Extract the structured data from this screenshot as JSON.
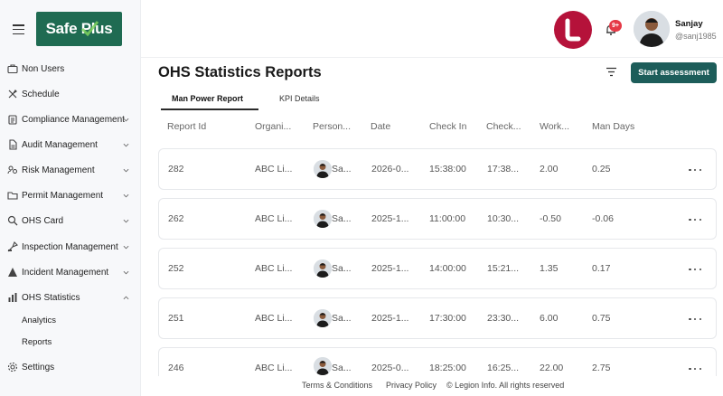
{
  "header": {
    "user_name": "Sanjay",
    "user_handle": "@sanj1985",
    "notification_badge": "9+",
    "brand_color": "#b5123a"
  },
  "logo": {
    "text": "Safe Plus",
    "color": "#1f6b52"
  },
  "sidebar": {
    "items": [
      {
        "label": "Non Users",
        "icon": "briefcase-icon"
      },
      {
        "label": "Schedule",
        "icon": "tools-icon"
      },
      {
        "label": "Compliance Management",
        "icon": "clipboard-icon"
      },
      {
        "label": "Audit Management",
        "icon": "document-icon"
      },
      {
        "label": "Risk Management",
        "icon": "people-icon"
      },
      {
        "label": "Permit Management",
        "icon": "folder-icon"
      },
      {
        "label": "OHS Card",
        "icon": "search-icon"
      },
      {
        "label": "Inspection Management",
        "icon": "inspection-icon"
      },
      {
        "label": "Incident Management",
        "icon": "warning-icon"
      },
      {
        "label": "OHS Statistics",
        "icon": "bar-chart-icon"
      }
    ],
    "sub_items": [
      {
        "label": "Analytics"
      },
      {
        "label": "Reports"
      }
    ],
    "settings_label": "Settings"
  },
  "main": {
    "title": "OHS Statistics Reports",
    "start_button": "Start assessment",
    "accent_color": "#1d5d5a",
    "tabs": [
      {
        "label": "Man Power Report",
        "active": true
      },
      {
        "label": "KPI Details",
        "active": false
      }
    ],
    "columns": [
      "Report Id",
      "Organi...",
      "Person...",
      "Date",
      "Check In",
      "Check...",
      "Work...",
      "Man Days"
    ],
    "rows": [
      {
        "id": "282",
        "org": "ABC Li...",
        "person": "Sa...",
        "date": "2026-0...",
        "check_in": "15:38:00",
        "check_out": "17:38...",
        "work": "2.00",
        "man_days": "0.25"
      },
      {
        "id": "262",
        "org": "ABC Li...",
        "person": "Sa...",
        "date": "2025-1...",
        "check_in": "11:00:00",
        "check_out": "10:30...",
        "work": "-0.50",
        "man_days": "-0.06"
      },
      {
        "id": "252",
        "org": "ABC Li...",
        "person": "Sa...",
        "date": "2025-1...",
        "check_in": "14:00:00",
        "check_out": "15:21...",
        "work": "1.35",
        "man_days": "0.17"
      },
      {
        "id": "251",
        "org": "ABC Li...",
        "person": "Sa...",
        "date": "2025-1...",
        "check_in": "17:30:00",
        "check_out": "23:30...",
        "work": "6.00",
        "man_days": "0.75"
      },
      {
        "id": "246",
        "org": "ABC Li...",
        "person": "Sa...",
        "date": "2025-0...",
        "check_in": "18:25:00",
        "check_out": "16:25...",
        "work": "22.00",
        "man_days": "2.75"
      }
    ]
  },
  "footer": {
    "terms": "Terms & Conditions",
    "privacy": "Privacy Policy",
    "copyright": "© Legion Info. All rights reserved"
  }
}
